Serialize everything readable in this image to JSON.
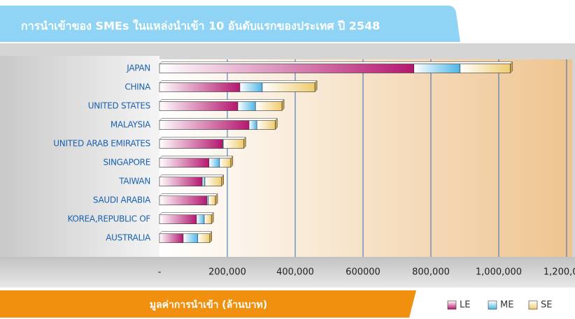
{
  "chart_data": {
    "type": "bar",
    "orientation": "horizontal",
    "stacked": true,
    "title": "การนำเข้าของ SMEs ในแหล่งนำเข้า 10 อันดับแรกของประเทศ ปี 2548",
    "x_label": "มูลค่าการนำเข้า (ล้านบาท)",
    "categories": [
      "JAPAN",
      "CHINA",
      "UNITED STATES",
      "MALAYSIA",
      "UNITED ARAB EMIRATES",
      "SINGAPORE",
      "TAIWAN",
      "SAUDI ARABIA",
      "KOREA,REPUBLIC OF",
      "AUSTRALIA"
    ],
    "series": [
      {
        "name": "LE",
        "color": "#b5176f",
        "values": [
          750000,
          237000,
          231000,
          264000,
          186000,
          146000,
          126000,
          140000,
          109000,
          70000
        ]
      },
      {
        "name": "ME",
        "color": "#4fb6e6",
        "values": [
          136000,
          66000,
          52000,
          23000,
          2000,
          31000,
          8000,
          4000,
          23000,
          43000
        ]
      },
      {
        "name": "SE",
        "color": "#f0cc6e",
        "values": [
          148000,
          155000,
          78000,
          54000,
          60000,
          33000,
          49000,
          21000,
          21000,
          35000
        ]
      }
    ],
    "xlim": [
      0,
      1200000
    ],
    "xticks": [
      {
        "value": 0,
        "label": "-"
      },
      {
        "value": 200000,
        "label": "200,000"
      },
      {
        "value": 400000,
        "label": "400,000"
      },
      600000,
      {
        "value": 800000,
        "label": "800,000"
      },
      {
        "value": 1000000,
        "label": "1,000,000"
      },
      {
        "value": 1200000,
        "label": "1,200,000"
      }
    ],
    "grid": true,
    "legend": "bottom-right"
  }
}
